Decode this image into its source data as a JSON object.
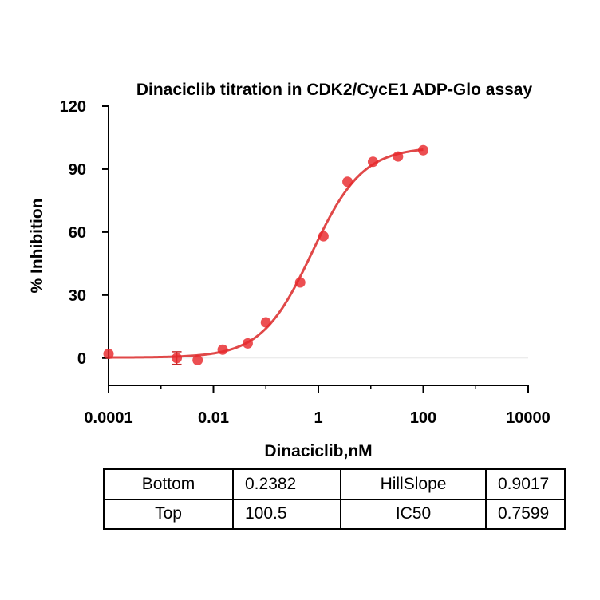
{
  "chart_data": {
    "type": "scatter",
    "title": "Dinaciclib titration in CDK2/CycE1 ADP-Glo assay",
    "xlabel": "Dinaciclib,nM",
    "ylabel": "% Inhibition",
    "x_scale": "log",
    "xlim": [
      0.0001,
      10000
    ],
    "ylim": [
      -13,
      120
    ],
    "x_ticks": [
      0.0001,
      0.01,
      1,
      100,
      10000
    ],
    "x_tick_labels": [
      "0.0001",
      "0.01",
      "1",
      "100",
      "10000"
    ],
    "y_ticks": [
      0,
      30,
      60,
      90,
      120
    ],
    "y_tick_labels": [
      "0",
      "30",
      "60",
      "90",
      "120"
    ],
    "grid": false,
    "point_color": "#e8282c",
    "curve_color": "#e04848",
    "points": [
      {
        "x": 0.0001,
        "y": 2
      },
      {
        "x": 0.002,
        "y": 0,
        "err": 3
      },
      {
        "x": 0.005,
        "y": -1
      },
      {
        "x": 0.015,
        "y": 4
      },
      {
        "x": 0.045,
        "y": 7
      },
      {
        "x": 0.1,
        "y": 17
      },
      {
        "x": 0.45,
        "y": 36
      },
      {
        "x": 1.25,
        "y": 58
      },
      {
        "x": 3.6,
        "y": 84
      },
      {
        "x": 11,
        "y": 93.5
      },
      {
        "x": 33,
        "y": 96
      },
      {
        "x": 100,
        "y": 99
      }
    ],
    "fit": {
      "bottom": 0.2382,
      "top": 100.5,
      "hillslope": 0.9017,
      "ic50": 0.7599
    }
  },
  "params_table": {
    "rows": [
      [
        "Bottom",
        "0.2382",
        "HillSlope",
        "0.9017"
      ],
      [
        "Top",
        "100.5",
        "IC50",
        "0.7599"
      ]
    ]
  }
}
